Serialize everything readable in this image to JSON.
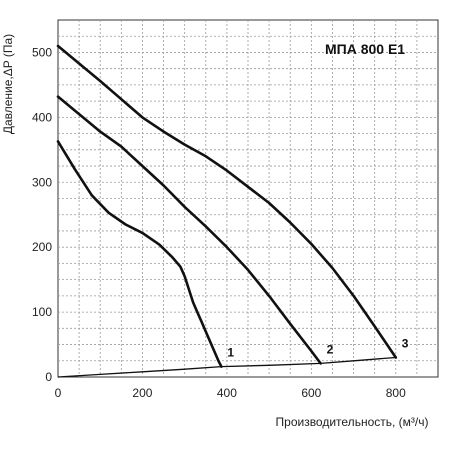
{
  "chart_data": {
    "type": "line",
    "title": "МПА 800 Е1",
    "xlabel": "Производительность, (м³/ч)",
    "ylabel": "Давление,ΔP (Па)",
    "xlim": [
      0,
      900
    ],
    "ylim": [
      0,
      550
    ],
    "xticks": [
      0,
      200,
      400,
      600,
      800
    ],
    "yticks": [
      0,
      100,
      200,
      300,
      400,
      500
    ],
    "grid": true,
    "series": [
      {
        "name": "1",
        "x": [
          0,
          40,
          80,
          120,
          160,
          200,
          240,
          270,
          290,
          300,
          310,
          320,
          330,
          340,
          350,
          360,
          370,
          380,
          387
        ],
        "y": [
          363,
          320,
          280,
          253,
          235,
          222,
          204,
          185,
          170,
          155,
          135,
          115,
          100,
          85,
          70,
          55,
          40,
          25,
          16
        ]
      },
      {
        "name": "2",
        "x": [
          0,
          50,
          100,
          150,
          200,
          250,
          300,
          350,
          400,
          450,
          500,
          550,
          600,
          622
        ],
        "y": [
          432,
          405,
          378,
          355,
          325,
          295,
          262,
          232,
          200,
          165,
          125,
          82,
          40,
          21
        ]
      },
      {
        "name": "3",
        "x": [
          0,
          50,
          100,
          150,
          200,
          250,
          300,
          350,
          400,
          450,
          500,
          550,
          600,
          650,
          700,
          750,
          800
        ],
        "y": [
          510,
          483,
          456,
          428,
          400,
          378,
          358,
          340,
          318,
          293,
          268,
          238,
          205,
          168,
          125,
          78,
          30
        ]
      }
    ],
    "system_curve": {
      "x": [
        0,
        100,
        200,
        300,
        387,
        500,
        622,
        700,
        800
      ],
      "y": [
        0,
        4,
        8,
        12,
        16,
        18,
        21,
        25,
        30
      ]
    }
  }
}
